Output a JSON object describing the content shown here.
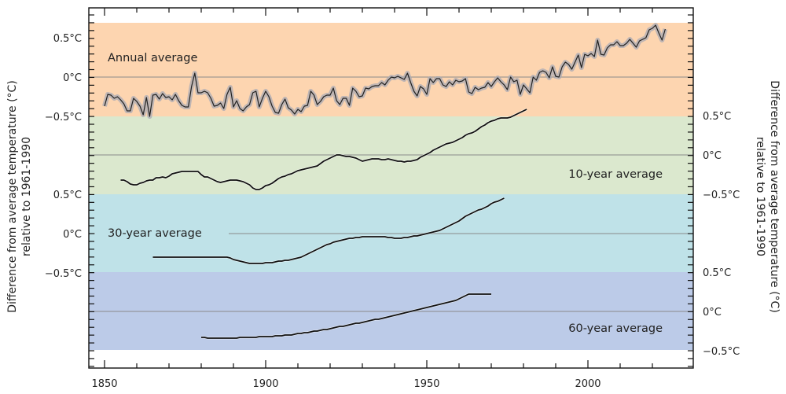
{
  "chart_data": {
    "type": "line",
    "title": "",
    "xlabel": "",
    "x_ticks": [
      1850,
      1900,
      1950,
      2000
    ],
    "xlim": [
      1845,
      2025
    ],
    "left_ylabel": [
      "Difference from average temperature (°C)",
      "relative to 1961-1990"
    ],
    "right_ylabel": [
      "Difference from average temperature (°C)",
      "relative to 1961-1990"
    ],
    "panels": [
      {
        "name": "Annual average",
        "label": "Annual average",
        "color": "#fdd5b0",
        "tick_side": "left",
        "tick_labels": [
          "0.5°C",
          "0°C",
          "−0.5°C"
        ],
        "ylim": [
          -0.5,
          0.7
        ],
        "uncertainty_band": true,
        "start_year": 1850,
        "values": [
          -0.37,
          -0.22,
          -0.23,
          -0.27,
          -0.25,
          -0.29,
          -0.34,
          -0.43,
          -0.43,
          -0.27,
          -0.31,
          -0.37,
          -0.48,
          -0.26,
          -0.5,
          -0.23,
          -0.22,
          -0.28,
          -0.21,
          -0.26,
          -0.25,
          -0.29,
          -0.22,
          -0.3,
          -0.36,
          -0.38,
          -0.38,
          -0.12,
          0.05,
          -0.2,
          -0.2,
          -0.18,
          -0.2,
          -0.27,
          -0.37,
          -0.36,
          -0.33,
          -0.4,
          -0.22,
          -0.13,
          -0.38,
          -0.3,
          -0.4,
          -0.43,
          -0.38,
          -0.35,
          -0.2,
          -0.18,
          -0.38,
          -0.27,
          -0.18,
          -0.25,
          -0.37,
          -0.45,
          -0.46,
          -0.35,
          -0.28,
          -0.39,
          -0.42,
          -0.47,
          -0.41,
          -0.44,
          -0.37,
          -0.36,
          -0.18,
          -0.23,
          -0.35,
          -0.31,
          -0.25,
          -0.23,
          -0.23,
          -0.14,
          -0.3,
          -0.35,
          -0.27,
          -0.27,
          -0.36,
          -0.14,
          -0.18,
          -0.25,
          -0.24,
          -0.14,
          -0.15,
          -0.12,
          -0.11,
          -0.11,
          -0.07,
          -0.1,
          -0.04,
          0.0,
          -0.01,
          0.01,
          -0.01,
          -0.03,
          0.05,
          -0.07,
          -0.18,
          -0.24,
          -0.12,
          -0.15,
          -0.22,
          -0.02,
          -0.07,
          -0.02,
          -0.02,
          -0.1,
          -0.12,
          -0.06,
          -0.1,
          -0.04,
          -0.06,
          -0.05,
          -0.02,
          -0.19,
          -0.21,
          -0.13,
          -0.16,
          -0.14,
          -0.13,
          -0.07,
          -0.12,
          -0.06,
          -0.01,
          -0.06,
          -0.1,
          -0.16,
          0.0,
          -0.06,
          -0.04,
          -0.22,
          -0.1,
          -0.15,
          -0.2,
          0.0,
          -0.04,
          0.06,
          0.08,
          0.06,
          -0.01,
          0.13,
          0.01,
          0.0,
          0.13,
          0.19,
          0.16,
          0.1,
          0.19,
          0.28,
          0.12,
          0.29,
          0.27,
          0.3,
          0.26,
          0.47,
          0.29,
          0.28,
          0.37,
          0.41,
          0.41,
          0.45,
          0.4,
          0.4,
          0.43,
          0.48,
          0.43,
          0.38,
          0.46,
          0.48,
          0.5,
          0.6,
          0.62,
          0.66,
          0.56,
          0.47,
          0.61
        ]
      },
      {
        "name": "10-year average",
        "label": "10-year average",
        "color": "#dbe8ce",
        "tick_side": "right",
        "tick_labels": [
          "0.5°C",
          "0°C",
          "−0.5°C"
        ],
        "ylim": [
          -0.5,
          0.5
        ],
        "start_year": 1855,
        "values": [
          -0.32,
          -0.32,
          -0.34,
          -0.37,
          -0.38,
          -0.38,
          -0.36,
          -0.35,
          -0.33,
          -0.32,
          -0.32,
          -0.29,
          -0.29,
          -0.28,
          -0.29,
          -0.27,
          -0.24,
          -0.23,
          -0.22,
          -0.21,
          -0.21,
          -0.21,
          -0.21,
          -0.21,
          -0.21,
          -0.25,
          -0.28,
          -0.28,
          -0.3,
          -0.32,
          -0.34,
          -0.35,
          -0.34,
          -0.33,
          -0.32,
          -0.32,
          -0.32,
          -0.33,
          -0.34,
          -0.36,
          -0.38,
          -0.42,
          -0.44,
          -0.44,
          -0.42,
          -0.39,
          -0.38,
          -0.36,
          -0.33,
          -0.3,
          -0.28,
          -0.27,
          -0.25,
          -0.24,
          -0.22,
          -0.2,
          -0.19,
          -0.18,
          -0.17,
          -0.16,
          -0.15,
          -0.14,
          -0.11,
          -0.08,
          -0.06,
          -0.04,
          -0.02,
          0.0,
          0.0,
          -0.01,
          -0.02,
          -0.02,
          -0.03,
          -0.04,
          -0.06,
          -0.08,
          -0.07,
          -0.06,
          -0.05,
          -0.05,
          -0.05,
          -0.06,
          -0.06,
          -0.05,
          -0.06,
          -0.07,
          -0.08,
          -0.08,
          -0.09,
          -0.08,
          -0.08,
          -0.07,
          -0.06,
          -0.03,
          -0.01,
          0.01,
          0.03,
          0.06,
          0.08,
          0.1,
          0.12,
          0.14,
          0.15,
          0.16,
          0.18,
          0.2,
          0.22,
          0.25,
          0.27,
          0.28,
          0.3,
          0.33,
          0.36,
          0.38,
          0.41,
          0.43,
          0.44,
          0.46,
          0.47,
          0.47,
          0.47,
          0.48,
          0.5,
          0.52,
          0.54,
          0.56,
          0.58
        ]
      },
      {
        "name": "30-year average",
        "label": "30-year average",
        "color": "#bfe2e8",
        "tick_side": "left",
        "tick_labels": [
          "0.5°C",
          "0°C",
          "−0.5°C"
        ],
        "ylim": [
          -0.5,
          0.5
        ],
        "start_year": 1865,
        "values": [
          -0.3,
          -0.3,
          -0.3,
          -0.3,
          -0.3,
          -0.3,
          -0.3,
          -0.3,
          -0.3,
          -0.3,
          -0.3,
          -0.3,
          -0.3,
          -0.3,
          -0.3,
          -0.3,
          -0.3,
          -0.3,
          -0.3,
          -0.3,
          -0.3,
          -0.3,
          -0.3,
          -0.3,
          -0.31,
          -0.33,
          -0.34,
          -0.35,
          -0.36,
          -0.37,
          -0.38,
          -0.38,
          -0.38,
          -0.38,
          -0.38,
          -0.37,
          -0.37,
          -0.37,
          -0.36,
          -0.35,
          -0.35,
          -0.34,
          -0.34,
          -0.33,
          -0.32,
          -0.31,
          -0.3,
          -0.28,
          -0.26,
          -0.24,
          -0.22,
          -0.2,
          -0.18,
          -0.16,
          -0.14,
          -0.13,
          -0.11,
          -0.1,
          -0.09,
          -0.08,
          -0.07,
          -0.06,
          -0.06,
          -0.05,
          -0.05,
          -0.04,
          -0.04,
          -0.04,
          -0.04,
          -0.04,
          -0.04,
          -0.04,
          -0.04,
          -0.05,
          -0.05,
          -0.06,
          -0.06,
          -0.06,
          -0.05,
          -0.05,
          -0.04,
          -0.03,
          -0.03,
          -0.02,
          -0.01,
          0.0,
          0.01,
          0.02,
          0.03,
          0.04,
          0.06,
          0.08,
          0.1,
          0.12,
          0.14,
          0.16,
          0.19,
          0.22,
          0.24,
          0.26,
          0.28,
          0.3,
          0.31,
          0.33,
          0.35,
          0.38,
          0.4,
          0.41,
          0.43,
          0.45
        ]
      },
      {
        "name": "60-year average",
        "label": "60-year average",
        "color": "#bccbe8",
        "tick_side": "right",
        "tick_labels": [
          "0.5°C",
          "0°C",
          "−0.5°C"
        ],
        "ylim": [
          -0.5,
          0.5
        ],
        "start_year": 1880,
        "values": [
          -0.33,
          -0.33,
          -0.34,
          -0.34,
          -0.34,
          -0.34,
          -0.34,
          -0.34,
          -0.34,
          -0.34,
          -0.34,
          -0.34,
          -0.33,
          -0.33,
          -0.33,
          -0.33,
          -0.33,
          -0.33,
          -0.32,
          -0.32,
          -0.32,
          -0.32,
          -0.32,
          -0.31,
          -0.31,
          -0.31,
          -0.3,
          -0.3,
          -0.3,
          -0.29,
          -0.28,
          -0.28,
          -0.27,
          -0.27,
          -0.26,
          -0.25,
          -0.25,
          -0.24,
          -0.23,
          -0.23,
          -0.22,
          -0.21,
          -0.2,
          -0.19,
          -0.19,
          -0.18,
          -0.17,
          -0.16,
          -0.15,
          -0.15,
          -0.14,
          -0.13,
          -0.12,
          -0.11,
          -0.1,
          -0.1,
          -0.09,
          -0.08,
          -0.07,
          -0.06,
          -0.05,
          -0.04,
          -0.03,
          -0.02,
          -0.01,
          0.0,
          0.01,
          0.02,
          0.03,
          0.04,
          0.05,
          0.06,
          0.07,
          0.08,
          0.09,
          0.1,
          0.11,
          0.12,
          0.13,
          0.14,
          0.16,
          0.18,
          0.2,
          0.22,
          0.22,
          0.22,
          0.22,
          0.22,
          0.22,
          0.22,
          0.22
        ]
      }
    ],
    "grid": false,
    "legend": "none"
  }
}
